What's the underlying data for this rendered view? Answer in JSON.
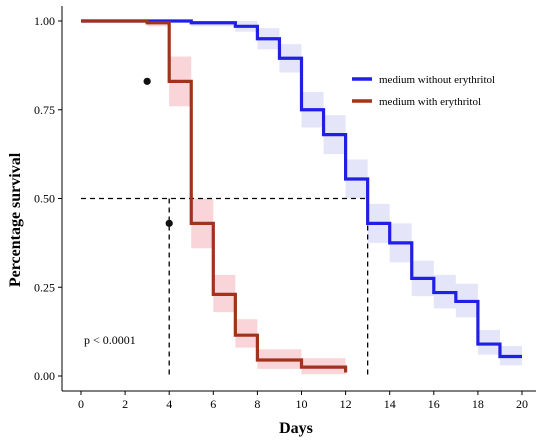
{
  "chart_data": {
    "type": "line",
    "step": true,
    "title": "",
    "xlabel": "Days",
    "ylabel": "Percentage survival",
    "xlim": [
      0,
      20
    ],
    "ylim": [
      0,
      1
    ],
    "xticks": [
      "0",
      "2",
      "4",
      "6",
      "8",
      "10",
      "12",
      "14",
      "16",
      "18",
      "20"
    ],
    "yticks": [
      "0.00",
      "0.25",
      "0.50",
      "0.75",
      "1.00"
    ],
    "grid": false,
    "legend_position": "top-right",
    "annotations": [
      {
        "text": "p < 0.0001",
        "x": 0,
        "y": 0.1
      }
    ],
    "median_line": {
      "y": 0.5,
      "x_values": [
        4,
        13
      ]
    },
    "series": [
      {
        "name": "medium without erythritol",
        "color": "#1f1fe6",
        "band_color": "#dcdcf8",
        "x": [
          0,
          5,
          7,
          8,
          9,
          10,
          11,
          12,
          13,
          14,
          15,
          16,
          17,
          18,
          19,
          20
        ],
        "y": [
          1.0,
          0.995,
          0.985,
          0.95,
          0.895,
          0.75,
          0.68,
          0.555,
          0.43,
          0.375,
          0.275,
          0.235,
          0.21,
          0.09,
          0.055,
          0.055
        ],
        "lower": [
          1.0,
          0.985,
          0.97,
          0.92,
          0.855,
          0.7,
          0.625,
          0.5,
          0.375,
          0.32,
          0.225,
          0.19,
          0.165,
          0.06,
          0.03,
          0.03
        ],
        "upper": [
          1.0,
          1.0,
          1.0,
          0.98,
          0.935,
          0.8,
          0.735,
          0.61,
          0.485,
          0.43,
          0.325,
          0.285,
          0.26,
          0.13,
          0.085,
          0.085
        ]
      },
      {
        "name": "medium with erythritol",
        "color": "#a0331c",
        "band_color": "#f7c6cc",
        "x": [
          0,
          3,
          4,
          5,
          6,
          7,
          8,
          10,
          12
        ],
        "y": [
          1.0,
          0.995,
          0.83,
          0.43,
          0.23,
          0.115,
          0.045,
          0.025,
          0.01
        ],
        "lower": [
          1.0,
          0.985,
          0.76,
          0.36,
          0.18,
          0.08,
          0.02,
          0.005,
          0.0
        ],
        "upper": [
          1.0,
          1.0,
          0.9,
          0.5,
          0.285,
          0.16,
          0.075,
          0.05,
          0.035
        ],
        "censor_marks": [
          {
            "x": 3,
            "y": 0.83
          },
          {
            "x": 4,
            "y": 0.43
          }
        ]
      }
    ]
  }
}
